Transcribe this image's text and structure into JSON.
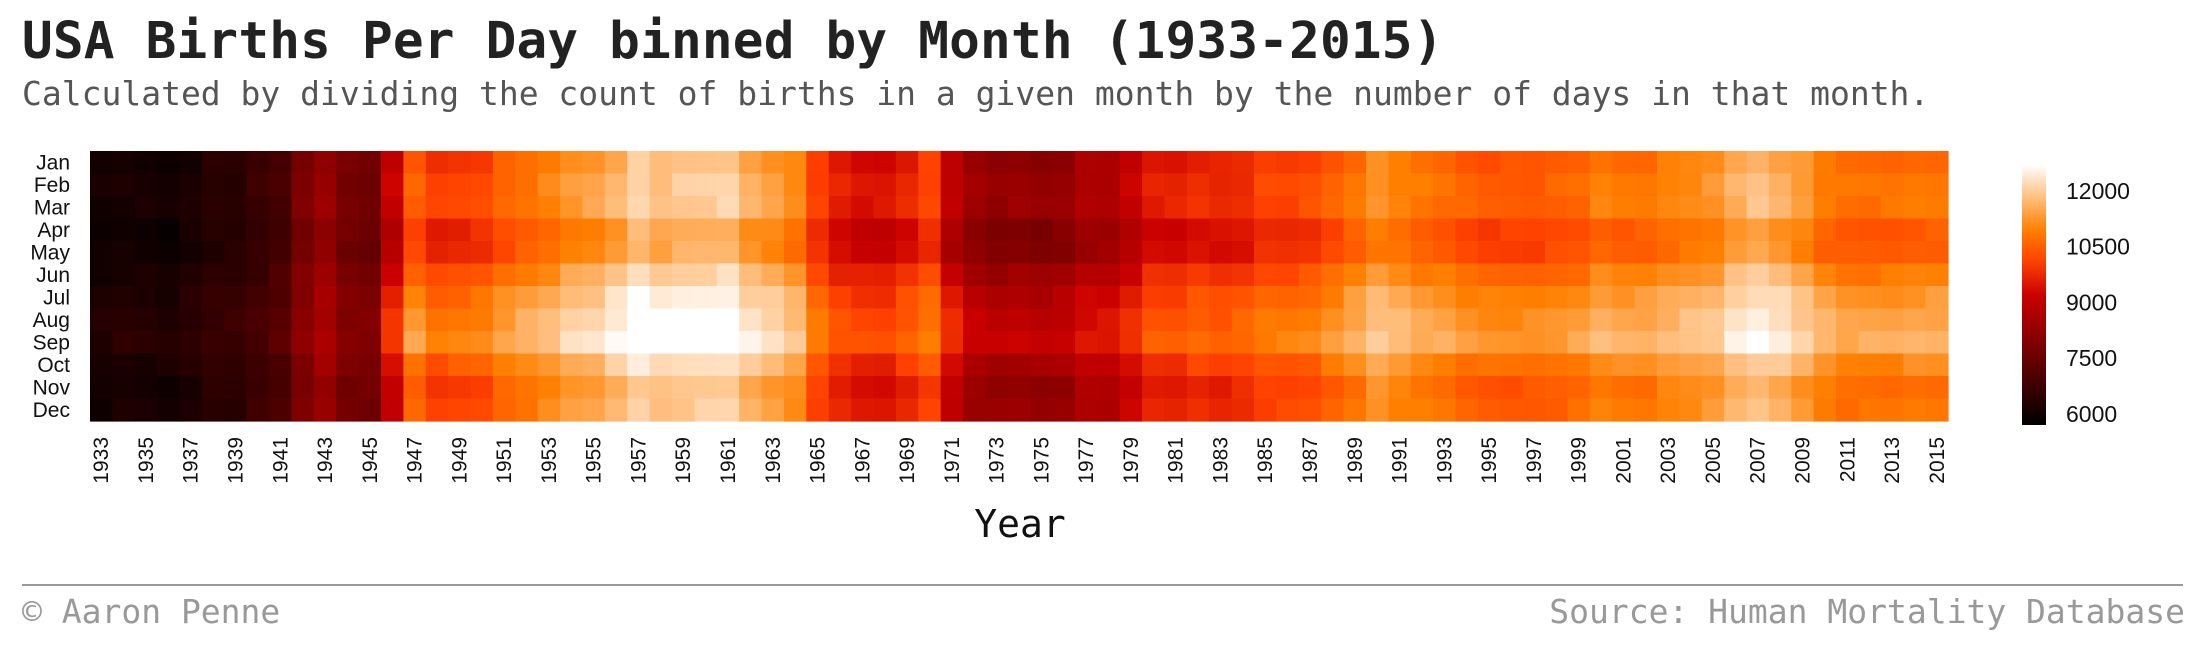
{
  "header": {
    "title": "USA Births Per Day binned by Month (1933-2015)",
    "subtitle": "Calculated by dividing the count of births in a given month by the number of days in that month."
  },
  "footer": {
    "credit": "© Aaron Penne",
    "source": "Source: Human Mortality Database"
  },
  "chart_data": {
    "type": "heatmap",
    "xlabel": "Year",
    "ylabel": "",
    "rows": [
      "Jan",
      "Feb",
      "Mar",
      "Apr",
      "May",
      "Jun",
      "Jul",
      "Aug",
      "Sep",
      "Oct",
      "Nov",
      "Dec"
    ],
    "x_start": 1933,
    "x_end": 2015,
    "x_tick_labels": [
      "1933",
      "1935",
      "1937",
      "1939",
      "1941",
      "1943",
      "1945",
      "1947",
      "1949",
      "1951",
      "1953",
      "1955",
      "1957",
      "1959",
      "1961",
      "1963",
      "1965",
      "1967",
      "1969",
      "1971",
      "1973",
      "1975",
      "1977",
      "1979",
      "1981",
      "1983",
      "1985",
      "1987",
      "1989",
      "1991",
      "1993",
      "1995",
      "1997",
      "1999",
      "2001",
      "2003",
      "2005",
      "2007",
      "2009",
      "2011",
      "2013",
      "2015"
    ],
    "yearly_level": [
      [
        1933,
        6100
      ],
      [
        1934,
        6200
      ],
      [
        1935,
        6150
      ],
      [
        1936,
        6100
      ],
      [
        1937,
        6250
      ],
      [
        1938,
        6500
      ],
      [
        1939,
        6500
      ],
      [
        1940,
        6750
      ],
      [
        1941,
        7000
      ],
      [
        1942,
        7900
      ],
      [
        1943,
        8400
      ],
      [
        1944,
        7800
      ],
      [
        1945,
        7700
      ],
      [
        1946,
        9300
      ],
      [
        1947,
        10700
      ],
      [
        1948,
        10200
      ],
      [
        1949,
        10300
      ],
      [
        1950,
        10400
      ],
      [
        1951,
        10800
      ],
      [
        1952,
        11000
      ],
      [
        1953,
        11200
      ],
      [
        1954,
        11500
      ],
      [
        1955,
        11600
      ],
      [
        1956,
        11900
      ],
      [
        1957,
        12300
      ],
      [
        1958,
        12050
      ],
      [
        1959,
        12150
      ],
      [
        1960,
        12200
      ],
      [
        1961,
        12250
      ],
      [
        1962,
        11800
      ],
      [
        1963,
        11600
      ],
      [
        1964,
        11300
      ],
      [
        1965,
        10300
      ],
      [
        1966,
        9800
      ],
      [
        1967,
        9600
      ],
      [
        1968,
        9600
      ],
      [
        1969,
        9900
      ],
      [
        1970,
        10300
      ],
      [
        1971,
        9200
      ],
      [
        1972,
        8600
      ],
      [
        1973,
        8400
      ],
      [
        1974,
        8500
      ],
      [
        1975,
        8400
      ],
      [
        1976,
        8500
      ],
      [
        1977,
        8900
      ],
      [
        1978,
        8900
      ],
      [
        1979,
        9300
      ],
      [
        1980,
        9800
      ],
      [
        1981,
        9800
      ],
      [
        1982,
        10000
      ],
      [
        1983,
        9900
      ],
      [
        1984,
        10000
      ],
      [
        1985,
        10300
      ],
      [
        1986,
        10300
      ],
      [
        1987,
        10400
      ],
      [
        1988,
        10700
      ],
      [
        1989,
        11000
      ],
      [
        1990,
        11400
      ],
      [
        1991,
        11200
      ],
      [
        1992,
        11000
      ],
      [
        1993,
        10900
      ],
      [
        1994,
        10700
      ],
      [
        1995,
        10600
      ],
      [
        1996,
        10600
      ],
      [
        1997,
        10600
      ],
      [
        1998,
        10700
      ],
      [
        1999,
        10800
      ],
      [
        2000,
        11100
      ],
      [
        2001,
        11000
      ],
      [
        2002,
        11000
      ],
      [
        2003,
        11200
      ],
      [
        2004,
        11300
      ],
      [
        2005,
        11400
      ],
      [
        2006,
        11800
      ],
      [
        2007,
        12000
      ],
      [
        2008,
        11800
      ],
      [
        2009,
        11500
      ],
      [
        2010,
        11100
      ],
      [
        2011,
        10900
      ],
      [
        2012,
        10900
      ],
      [
        2013,
        10900
      ],
      [
        2014,
        11000
      ],
      [
        2015,
        11000
      ]
    ],
    "monthly_offset": [
      -300,
      -150,
      -150,
      -550,
      -500,
      -50,
      300,
      500,
      650,
      100,
      -250,
      -150
    ],
    "colorbar": {
      "ticks": [
        6000,
        7500,
        9000,
        10500,
        12000
      ],
      "range": [
        5700,
        12700
      ],
      "colormap": "gist_heat"
    }
  }
}
